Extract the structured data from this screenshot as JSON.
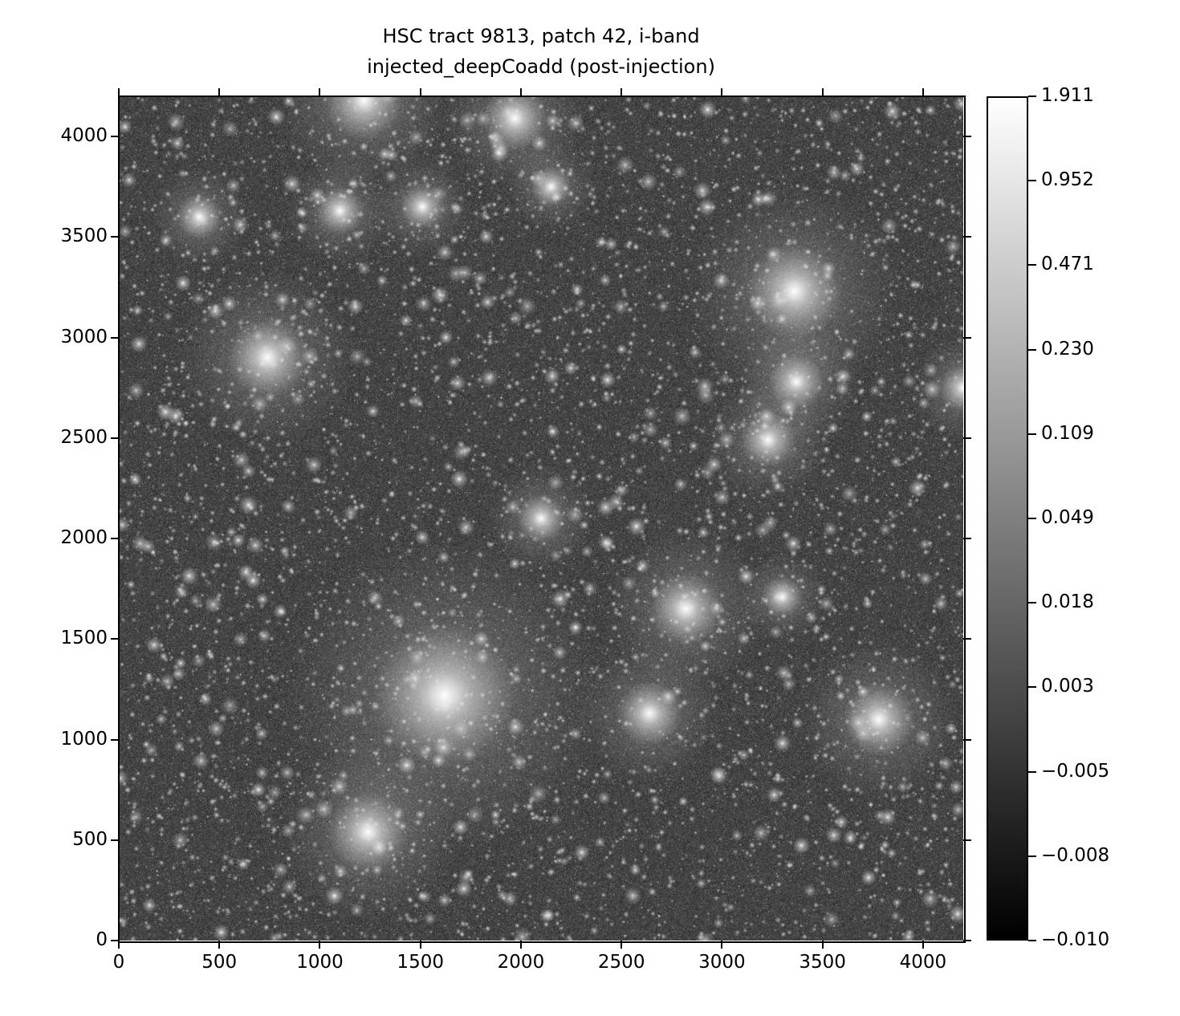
{
  "chart_data": {
    "type": "heatmap",
    "title": "HSC tract 9813, patch 42, i-band",
    "subtitle": "injected_deepCoadd (post-injection)",
    "colormap": "gray",
    "stretch": "asinh",
    "xlim": [
      0,
      4200
    ],
    "ylim": [
      0,
      4200
    ],
    "xticks": [
      "0",
      "500",
      "1000",
      "1500",
      "2000",
      "2500",
      "3000",
      "3500",
      "4000"
    ],
    "yticks": [
      "0",
      "500",
      "1000",
      "1500",
      "2000",
      "2500",
      "3000",
      "3500",
      "4000"
    ],
    "colorbar": {
      "range": [
        -0.01,
        1.911
      ],
      "ticks": [
        "−0.010",
        "−0.008",
        "−0.005",
        "0.003",
        "0.018",
        "0.049",
        "0.109",
        "0.230",
        "0.471",
        "0.952",
        "1.911"
      ]
    },
    "grid": false
  }
}
